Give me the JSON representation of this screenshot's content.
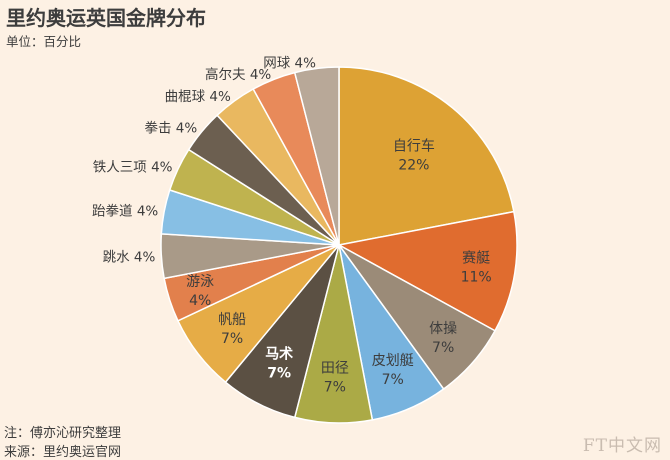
{
  "title": "里约奥运英国金牌分布",
  "subtitle": "单位：百分比",
  "notes": [
    "注：傅亦沁研究整理",
    "来源：里约奥运官网"
  ],
  "logo": "FT中文网",
  "chart_data": {
    "type": "pie",
    "unit": "%",
    "slices": [
      {
        "label": "自行车",
        "value": 22,
        "display": "22%",
        "color": "#dda234"
      },
      {
        "label": "赛艇",
        "value": 11,
        "display": "11%",
        "color": "#e06c2f"
      },
      {
        "label": "体操",
        "value": 7,
        "display": "7%",
        "color": "#9b8b78"
      },
      {
        "label": "皮划艇",
        "value": 7,
        "display": "7%",
        "color": "#77b3de"
      },
      {
        "label": "田径",
        "value": 7,
        "display": "7%",
        "color": "#abaa46"
      },
      {
        "label": "马术",
        "value": 7,
        "display": "7%",
        "color": "#5b5043"
      },
      {
        "label": "帆船",
        "value": 7,
        "display": "7%",
        "color": "#e6ac46"
      },
      {
        "label": "游泳",
        "value": 4,
        "display": "4%",
        "color": "#e2804c"
      },
      {
        "label": "跳水",
        "value": 4,
        "display": "4%",
        "color": "#a99a88"
      },
      {
        "label": "跆拳道",
        "value": 4,
        "display": "4%",
        "color": "#87bfe4"
      },
      {
        "label": "铁人三项",
        "value": 4,
        "display": "4%",
        "color": "#bfb34f"
      },
      {
        "label": "拳击",
        "value": 4,
        "display": "4%",
        "color": "#6c5f50"
      },
      {
        "label": "曲棍球",
        "value": 4,
        "display": "4%",
        "color": "#e9b860"
      },
      {
        "label": "高尔夫",
        "value": 4,
        "display": "4%",
        "color": "#e88a5a"
      },
      {
        "label": "网球",
        "value": 4,
        "display": "4%",
        "color": "#b8a898"
      }
    ]
  }
}
